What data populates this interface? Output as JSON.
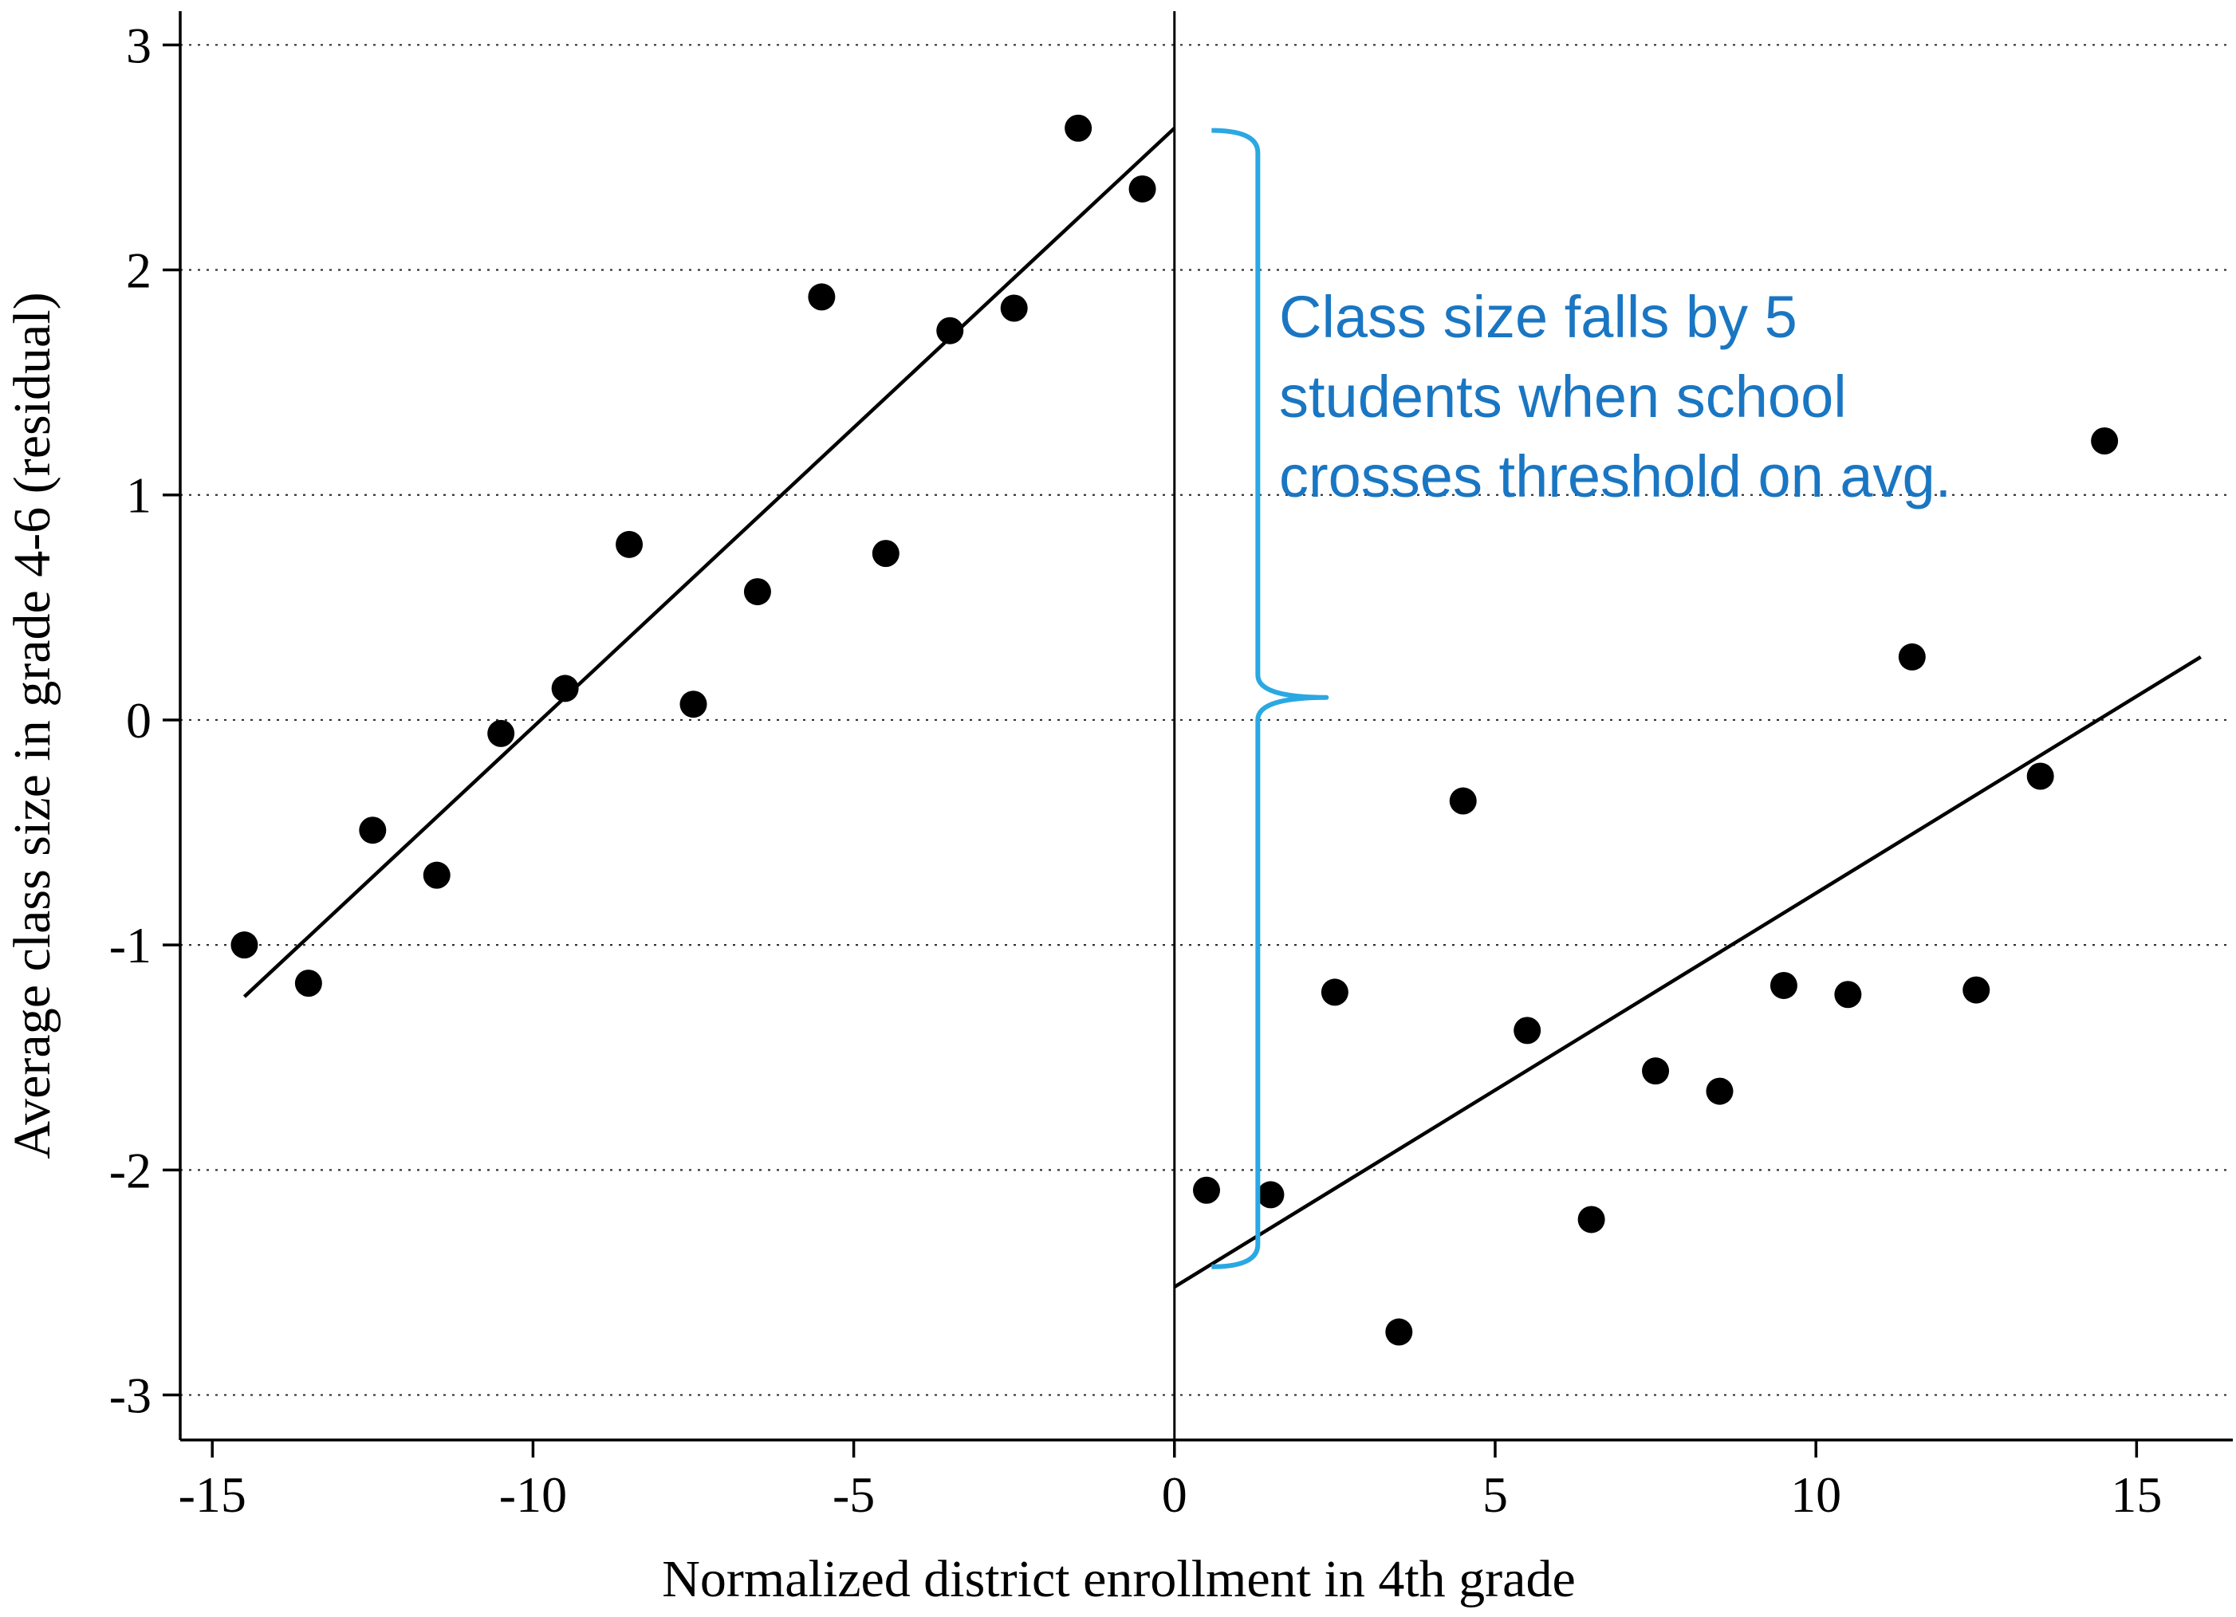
{
  "chart_data": {
    "type": "scatter",
    "title": "",
    "xlabel": "Normalized district enrollment in 4th grade",
    "ylabel": "Average class size in grade 4-6 (residual)",
    "xlim": [
      -15.5,
      16.5
    ],
    "ylim": [
      -3.2,
      3.15
    ],
    "x_ticks": [
      -15,
      -10,
      -5,
      0,
      5,
      10,
      15
    ],
    "y_ticks": [
      -3,
      -2,
      -1,
      0,
      1,
      2,
      3
    ],
    "grid": "horizontal dotted lines at y ticks",
    "threshold_x": 0,
    "series": [
      {
        "side": "below threshold",
        "points": [
          {
            "x": -14.5,
            "y": -1.0
          },
          {
            "x": -13.5,
            "y": -1.17
          },
          {
            "x": -12.5,
            "y": -0.49
          },
          {
            "x": -11.5,
            "y": -0.69
          },
          {
            "x": -10.5,
            "y": -0.06
          },
          {
            "x": -9.5,
            "y": 0.14
          },
          {
            "x": -8.5,
            "y": 0.78
          },
          {
            "x": -7.5,
            "y": 0.07
          },
          {
            "x": -6.5,
            "y": 0.57
          },
          {
            "x": -5.5,
            "y": 1.88
          },
          {
            "x": -4.5,
            "y": 0.74
          },
          {
            "x": -3.5,
            "y": 1.73
          },
          {
            "x": -2.5,
            "y": 1.83
          },
          {
            "x": -1.5,
            "y": 2.63
          },
          {
            "x": -0.5,
            "y": 2.36
          }
        ],
        "fit_line": {
          "x": [
            -14.5,
            0
          ],
          "y": [
            -1.23,
            2.63
          ]
        }
      },
      {
        "side": "above threshold",
        "points": [
          {
            "x": 0.5,
            "y": -2.09
          },
          {
            "x": 1.5,
            "y": -2.11
          },
          {
            "x": 2.5,
            "y": -1.21
          },
          {
            "x": 3.5,
            "y": -2.72
          },
          {
            "x": 4.5,
            "y": -0.36
          },
          {
            "x": 5.5,
            "y": -1.38
          },
          {
            "x": 6.5,
            "y": -2.22
          },
          {
            "x": 7.5,
            "y": -1.56
          },
          {
            "x": 8.5,
            "y": -1.65
          },
          {
            "x": 9.5,
            "y": -1.18
          },
          {
            "x": 10.5,
            "y": -1.22
          },
          {
            "x": 11.5,
            "y": 0.28
          },
          {
            "x": 12.5,
            "y": -1.2
          },
          {
            "x": 13.5,
            "y": -0.25
          },
          {
            "x": 14.5,
            "y": 1.24
          }
        ],
        "fit_line": {
          "x": [
            0,
            16
          ],
          "y": [
            -2.52,
            0.28
          ]
        }
      }
    ],
    "annotation": {
      "lines": [
        "Class size falls by 5",
        "students when school",
        "crosses threshold on avg."
      ],
      "color": "#1a76c2",
      "brace_color": "#2aa8e2",
      "brace_x": 1.3,
      "brace_top_y": 2.62,
      "brace_bottom_y": -2.43
    }
  }
}
